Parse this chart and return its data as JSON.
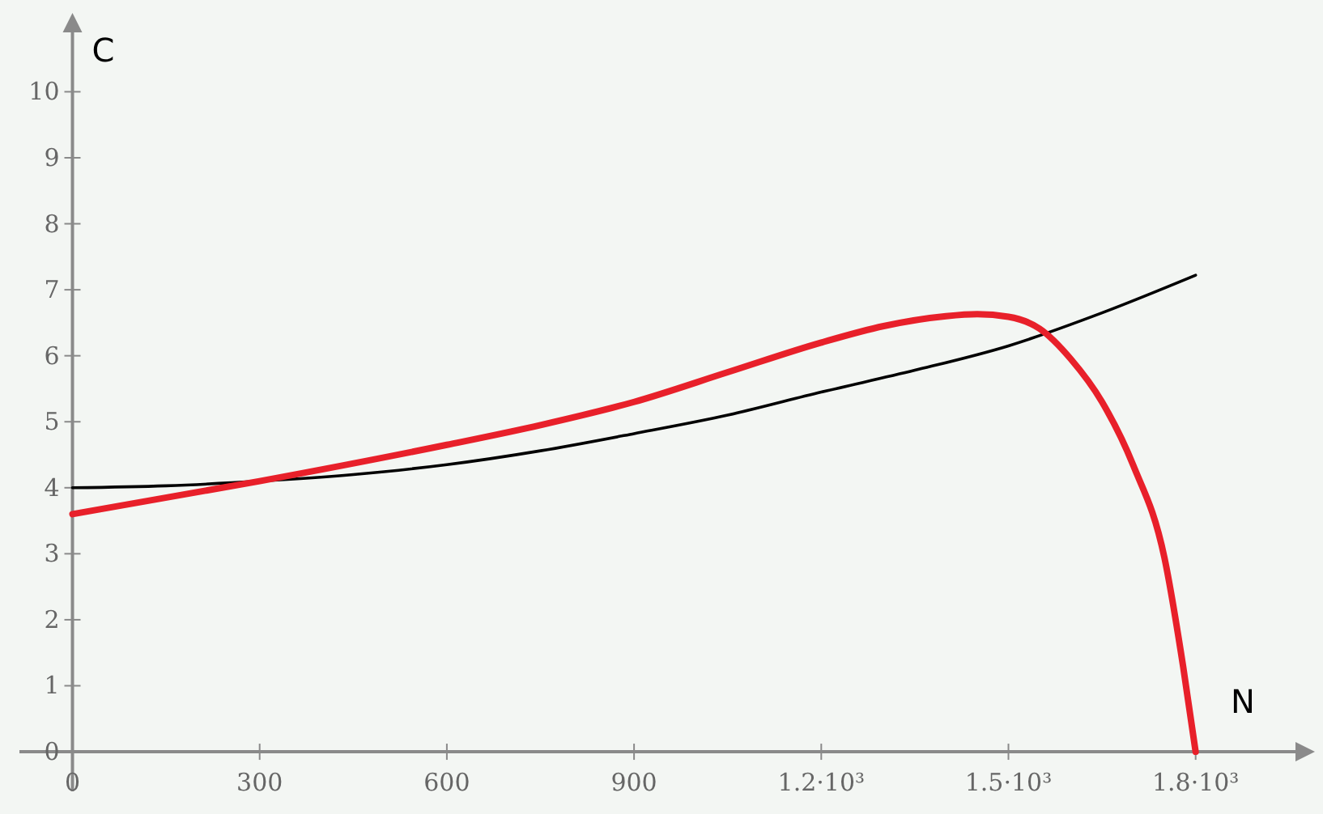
{
  "chart_data": {
    "type": "line",
    "xlabel": "N",
    "ylabel": "C",
    "xlim": [
      -85,
      1960
    ],
    "ylim": [
      -0.6,
      10.9
    ],
    "xticks": [
      0,
      300,
      600,
      900,
      {
        "value": 1200,
        "label": "1.2·10³"
      },
      {
        "value": 1500,
        "label": "1.5·10³"
      },
      {
        "value": 1800,
        "label": "1.8·10³"
      }
    ],
    "yticks": [
      0,
      1,
      2,
      3,
      4,
      5,
      6,
      7,
      8,
      9,
      10
    ],
    "grid": false,
    "marker": "none",
    "line_style": "solid",
    "series": [
      {
        "color": "#000000",
        "x": [
          0,
          150,
          300,
          450,
          600,
          750,
          900,
          1050,
          1200,
          1350,
          1500,
          1650,
          1800
        ],
        "values": [
          4,
          4.03,
          4.1,
          4.2,
          4.35,
          4.56,
          4.82,
          5.1,
          5.45,
          5.78,
          6.15,
          6.65,
          7.22
        ]
      },
      {
        "color": "#e8202a",
        "x": [
          0,
          300,
          600,
          750,
          900,
          1050,
          1200,
          1300,
          1400,
          1450,
          1500,
          1550,
          1600,
          1650,
          1700,
          1750,
          1780,
          1800
        ],
        "values": [
          3.6,
          4.1,
          4.65,
          4.95,
          5.3,
          5.75,
          6.2,
          6.45,
          6.6,
          6.63,
          6.59,
          6.41,
          5.95,
          5.3,
          4.34,
          2.94,
          1.29,
          0
        ]
      }
    ]
  }
}
